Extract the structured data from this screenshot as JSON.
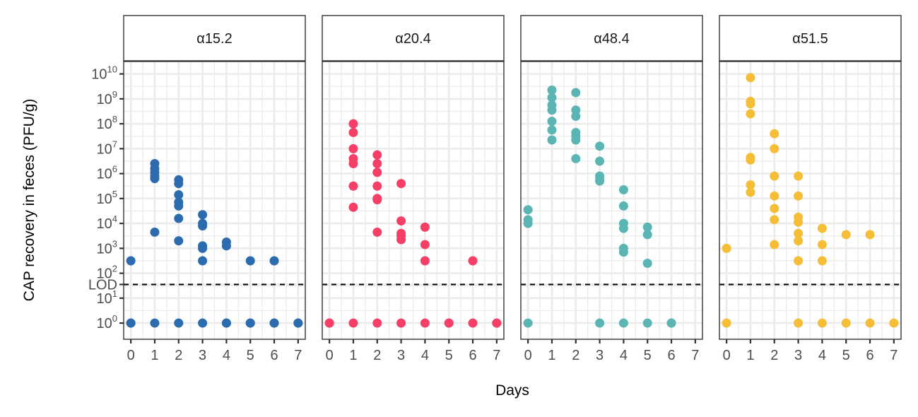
{
  "chart_data": {
    "type": "scatter",
    "xlabel": "Days",
    "ylabel": "CAP recovery in feces (PFU/g)",
    "x_ticks": [
      0,
      1,
      2,
      3,
      4,
      5,
      6,
      7
    ],
    "xlim": [
      -0.3,
      7.3
    ],
    "y_scale": "log10",
    "ylim_log10": [
      -0.65,
      10.5
    ],
    "y_tick_labels": [
      {
        "log10": 10,
        "base": "10",
        "exp": "10"
      },
      {
        "log10": 9,
        "base": "10",
        "exp": "9"
      },
      {
        "log10": 8,
        "base": "10",
        "exp": "8"
      },
      {
        "log10": 7,
        "base": "10",
        "exp": "7"
      },
      {
        "log10": 6,
        "base": "10",
        "exp": "6"
      },
      {
        "log10": 5,
        "base": "10",
        "exp": "5"
      },
      {
        "log10": 4,
        "base": "10",
        "exp": "4"
      },
      {
        "log10": 3,
        "base": "10",
        "exp": "3"
      },
      {
        "log10": 2,
        "base": "10",
        "exp": "2"
      },
      {
        "log10": 1.55,
        "base": "LOD",
        "exp": ""
      },
      {
        "log10": 1,
        "base": "10",
        "exp": "1"
      },
      {
        "log10": 0,
        "base": "10",
        "exp": "0"
      }
    ],
    "lod_log10": 1.55,
    "grid": true,
    "facets": [
      {
        "label": "α15.2",
        "color": "#2B6BAE",
        "points": [
          [
            0,
            2.5
          ],
          [
            0,
            0
          ],
          [
            0,
            0
          ],
          [
            1,
            6.4
          ],
          [
            1,
            6.2
          ],
          [
            1,
            6.05
          ],
          [
            1,
            5.9
          ],
          [
            1,
            5.8
          ],
          [
            1,
            3.65
          ],
          [
            1,
            0
          ],
          [
            2,
            5.75
          ],
          [
            2,
            5.6
          ],
          [
            2,
            5.15
          ],
          [
            2,
            4.85
          ],
          [
            2,
            4.7
          ],
          [
            2,
            4.2
          ],
          [
            2,
            3.3
          ],
          [
            2,
            0
          ],
          [
            3,
            4.35
          ],
          [
            3,
            4.0
          ],
          [
            3,
            3.9
          ],
          [
            3,
            3.1
          ],
          [
            3,
            3.0
          ],
          [
            3,
            2.5
          ],
          [
            3,
            0
          ],
          [
            4,
            3.25
          ],
          [
            4,
            3.1
          ],
          [
            4,
            0
          ],
          [
            4,
            0
          ],
          [
            5,
            2.5
          ],
          [
            5,
            0
          ],
          [
            5,
            0
          ],
          [
            6,
            2.5
          ],
          [
            6,
            0
          ],
          [
            6,
            0
          ],
          [
            7,
            0
          ],
          [
            7,
            0
          ]
        ]
      },
      {
        "label": "α20.4",
        "color": "#F53F66",
        "points": [
          [
            0,
            0
          ],
          [
            0,
            0
          ],
          [
            1,
            8.0
          ],
          [
            1,
            7.65
          ],
          [
            1,
            7.0
          ],
          [
            1,
            6.6
          ],
          [
            1,
            6.4
          ],
          [
            1,
            5.5
          ],
          [
            1,
            4.65
          ],
          [
            1,
            0
          ],
          [
            2,
            6.75
          ],
          [
            2,
            6.4
          ],
          [
            2,
            6.05
          ],
          [
            2,
            5.5
          ],
          [
            2,
            5.0
          ],
          [
            2,
            4.95
          ],
          [
            2,
            3.65
          ],
          [
            2,
            0
          ],
          [
            3,
            5.6
          ],
          [
            3,
            4.1
          ],
          [
            3,
            3.6
          ],
          [
            3,
            3.5
          ],
          [
            3,
            3.35
          ],
          [
            3,
            0
          ],
          [
            4,
            3.85
          ],
          [
            4,
            3.15
          ],
          [
            4,
            2.5
          ],
          [
            4,
            0
          ],
          [
            5,
            0
          ],
          [
            5,
            0
          ],
          [
            6,
            2.5
          ],
          [
            6,
            0
          ],
          [
            7,
            0
          ],
          [
            7,
            0
          ]
        ]
      },
      {
        "label": "α48.4",
        "color": "#5BB5B2",
        "points": [
          [
            0,
            4.55
          ],
          [
            0,
            4.15
          ],
          [
            0,
            4.0
          ],
          [
            0,
            0
          ],
          [
            1,
            9.35
          ],
          [
            1,
            9.05
          ],
          [
            1,
            8.75
          ],
          [
            1,
            8.55
          ],
          [
            1,
            8.1
          ],
          [
            1,
            7.75
          ],
          [
            1,
            7.35
          ],
          [
            2,
            9.25
          ],
          [
            2,
            8.55
          ],
          [
            2,
            8.3
          ],
          [
            2,
            7.65
          ],
          [
            2,
            7.5
          ],
          [
            2,
            7.35
          ],
          [
            2,
            6.6
          ],
          [
            3,
            7.1
          ],
          [
            3,
            6.5
          ],
          [
            3,
            5.9
          ],
          [
            3,
            5.75
          ],
          [
            3,
            5.7
          ],
          [
            3,
            0
          ],
          [
            4,
            5.35
          ],
          [
            4,
            4.7
          ],
          [
            4,
            4.0
          ],
          [
            4,
            3.8
          ],
          [
            4,
            3.0
          ],
          [
            4,
            2.85
          ],
          [
            4,
            0
          ],
          [
            5,
            3.85
          ],
          [
            5,
            3.55
          ],
          [
            5,
            2.4
          ],
          [
            5,
            0
          ],
          [
            6,
            0
          ],
          [
            6,
            0
          ]
        ]
      },
      {
        "label": "α51.5",
        "color": "#F6BE37",
        "points": [
          [
            0,
            3.0
          ],
          [
            0,
            0
          ],
          [
            1,
            9.85
          ],
          [
            1,
            8.9
          ],
          [
            1,
            8.8
          ],
          [
            1,
            8.4
          ],
          [
            1,
            6.65
          ],
          [
            1,
            6.55
          ],
          [
            1,
            5.55
          ],
          [
            1,
            5.25
          ],
          [
            2,
            7.6
          ],
          [
            2,
            7.0
          ],
          [
            2,
            5.9
          ],
          [
            2,
            5.1
          ],
          [
            2,
            4.6
          ],
          [
            2,
            4.15
          ],
          [
            2,
            3.15
          ],
          [
            3,
            5.9
          ],
          [
            3,
            5.1
          ],
          [
            3,
            4.25
          ],
          [
            3,
            4.05
          ],
          [
            3,
            3.6
          ],
          [
            3,
            3.3
          ],
          [
            3,
            2.5
          ],
          [
            3,
            0
          ],
          [
            4,
            3.8
          ],
          [
            4,
            3.15
          ],
          [
            4,
            2.5
          ],
          [
            4,
            0
          ],
          [
            5,
            3.55
          ],
          [
            5,
            0
          ],
          [
            6,
            3.55
          ],
          [
            6,
            0
          ],
          [
            7,
            0
          ]
        ]
      }
    ]
  }
}
